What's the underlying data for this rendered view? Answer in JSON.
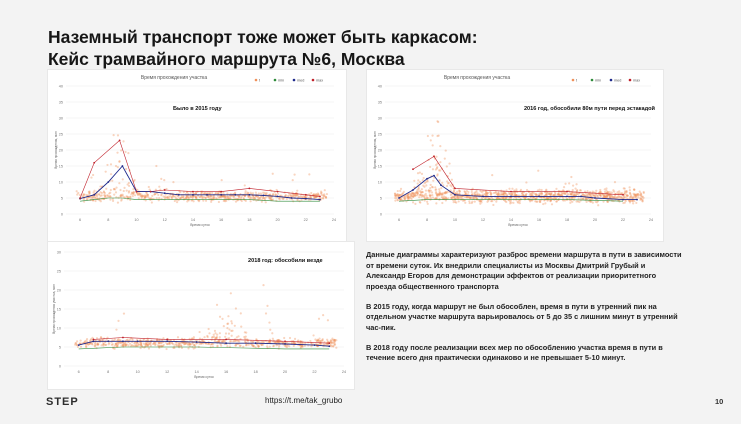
{
  "slide": {
    "title_line1": "Наземный транспорт тоже может быть каркасом:",
    "title_line2": "Кейс трамвайного маршрута №6, Москва",
    "description": [
      "Данные диаграммы характеризуют разброс времени маршрута в пути в зависимости от времени суток. Их внедрили специалисты из Москвы Дмитрий Грубый и Александр Егоров для демонстрации эффектов от реализации приоритетного проезда общественного транспорта",
      "В 2015 году, когда маршрут не был обособлен, время в пути в утренний пик на отдельном участке маршрута варьировалось от 5 до 35 с лишним минут в утренний час-пик.",
      "В 2018 году после реализации всех мер по обособлению участка время в пути в течение всего дня практически одинаково и не превышает 5-10 минут."
    ],
    "logo": "STEP",
    "link": "https://t.me/tak_grubo",
    "page_number": "10",
    "colors": {
      "scatter": "#f0905a",
      "median": "#1f2a8c",
      "max": "#c0202a",
      "min": "#2e8b3a",
      "accent_text": "#111111"
    }
  },
  "chart_data": [
    {
      "type": "scatter",
      "title": "Время прохождения участка",
      "annotation": "Было в 2015 году",
      "xlabel": "Время суток",
      "ylabel": "Время прохождения, мин",
      "legend": [
        "t",
        "min",
        "med",
        "max"
      ],
      "xlim": [
        5,
        24
      ],
      "ylim": [
        0,
        40
      ],
      "xticks": [
        "6",
        "8",
        "10",
        "12",
        "14",
        "16",
        "18",
        "20",
        "22",
        "24"
      ],
      "yticks": [
        "0",
        "5",
        "10",
        "15",
        "20",
        "25",
        "30",
        "35",
        "40"
      ],
      "median": [
        [
          6,
          4.8
        ],
        [
          7,
          6
        ],
        [
          8,
          10
        ],
        [
          9,
          15
        ],
        [
          10,
          7
        ],
        [
          11,
          7
        ],
        [
          12,
          6.5
        ],
        [
          13,
          6
        ],
        [
          14,
          6
        ],
        [
          15,
          6
        ],
        [
          16,
          6
        ],
        [
          17,
          6
        ],
        [
          18,
          6
        ],
        [
          19,
          5.8
        ],
        [
          20,
          5.5
        ],
        [
          21,
          5
        ],
        [
          22,
          4.8
        ],
        [
          23,
          4.5
        ]
      ],
      "max": [
        [
          6,
          5
        ],
        [
          7,
          16
        ],
        [
          8.8,
          23
        ],
        [
          10,
          7
        ],
        [
          11,
          7
        ],
        [
          12,
          7.5
        ],
        [
          14,
          7
        ],
        [
          16,
          7
        ],
        [
          18,
          8
        ],
        [
          20,
          7
        ],
        [
          22,
          6
        ],
        [
          23,
          5.5
        ]
      ],
      "min": [
        [
          6,
          4
        ],
        [
          7,
          4.5
        ],
        [
          8,
          5
        ],
        [
          9,
          5
        ],
        [
          10,
          4.5
        ],
        [
          12,
          4.5
        ],
        [
          14,
          4.5
        ],
        [
          16,
          4.5
        ],
        [
          18,
          4.5
        ],
        [
          20,
          4
        ],
        [
          22,
          4
        ],
        [
          23,
          4
        ]
      ],
      "spread": {
        "base": 5.5,
        "spread": 1.5,
        "peak_hour": 8.8,
        "peak": 35,
        "secondary_hour": 11.5,
        "secondary": 22
      }
    },
    {
      "type": "scatter",
      "title": "Время прохождения участка",
      "annotation": "2016 год, обособили 80м пути перед эстакадой",
      "xlabel": "Время суток",
      "ylabel": "Время прохождения, мин",
      "legend": [
        "t",
        "min",
        "med",
        "max"
      ],
      "xlim": [
        5,
        24
      ],
      "ylim": [
        0,
        40
      ],
      "xticks": [
        "6",
        "8",
        "10",
        "12",
        "14",
        "16",
        "18",
        "20",
        "22",
        "24"
      ],
      "yticks": [
        "0",
        "5",
        "10",
        "15",
        "20",
        "25",
        "30",
        "35",
        "40"
      ],
      "median": [
        [
          6,
          5
        ],
        [
          7,
          7.5
        ],
        [
          8,
          11
        ],
        [
          8.5,
          12
        ],
        [
          9,
          9
        ],
        [
          10,
          6
        ],
        [
          12,
          5.5
        ],
        [
          14,
          5.5
        ],
        [
          16,
          5.5
        ],
        [
          18,
          5.5
        ],
        [
          19,
          5.5
        ],
        [
          20,
          5
        ],
        [
          22,
          4.5
        ],
        [
          23,
          4.5
        ]
      ],
      "max": [
        [
          7,
          14
        ],
        [
          8.5,
          18
        ],
        [
          10,
          8
        ],
        [
          14,
          7
        ],
        [
          18,
          7
        ],
        [
          22,
          6
        ]
      ],
      "min": [
        [
          6,
          4
        ],
        [
          8,
          4.5
        ],
        [
          10,
          4.5
        ],
        [
          14,
          4.5
        ],
        [
          18,
          4.5
        ],
        [
          22,
          4
        ]
      ],
      "spread": {
        "base": 5.5,
        "spread": 2.0,
        "peak_hour": 8.5,
        "peak": 37,
        "secondary_hour": 18,
        "secondary": 17
      }
    },
    {
      "type": "scatter",
      "title": "",
      "annotation": "2018 год: обособили везде",
      "xlabel": "Время суток",
      "ylabel": "Время прохождения участка, мин",
      "legend": [],
      "xlim": [
        5,
        24
      ],
      "ylim": [
        0,
        30
      ],
      "xticks": [
        "6",
        "8",
        "10",
        "12",
        "14",
        "16",
        "18",
        "20",
        "22",
        "24"
      ],
      "yticks": [
        "0",
        "5",
        "10",
        "15",
        "20",
        "25",
        "30"
      ],
      "median": [
        [
          6,
          5.5
        ],
        [
          7,
          6.5
        ],
        [
          8,
          6.5
        ],
        [
          9,
          6.5
        ],
        [
          10,
          6.5
        ],
        [
          12,
          6.5
        ],
        [
          14,
          6.3
        ],
        [
          16,
          6
        ],
        [
          18,
          6
        ],
        [
          20,
          5.8
        ],
        [
          22,
          5.5
        ],
        [
          23,
          5.2
        ]
      ],
      "max": [
        [
          7,
          7
        ],
        [
          9,
          7.5
        ],
        [
          12,
          7
        ],
        [
          16,
          7
        ],
        [
          20,
          6.5
        ],
        [
          23,
          6
        ]
      ],
      "min": [
        [
          6,
          4.5
        ],
        [
          9,
          5
        ],
        [
          14,
          5
        ],
        [
          20,
          4.5
        ],
        [
          23,
          4.5
        ]
      ],
      "spread": {
        "base": 6.0,
        "spread": 1.2,
        "peak_hour": 16,
        "peak": 27,
        "secondary_hour": 18.5,
        "secondary": 24
      }
    }
  ]
}
